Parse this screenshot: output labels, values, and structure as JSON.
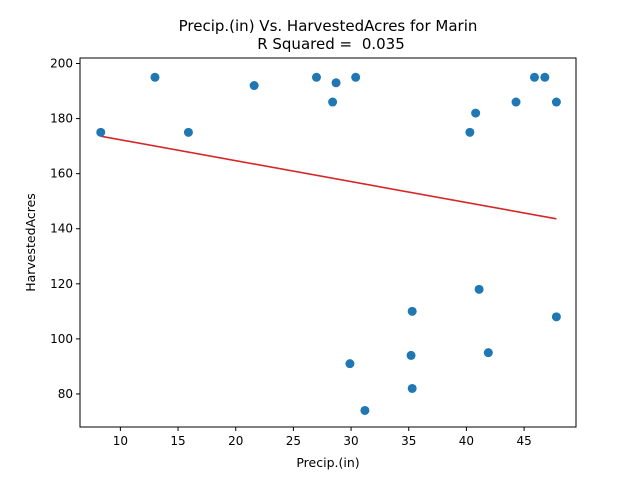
{
  "chart_data": {
    "type": "scatter",
    "title": "Precip.(in) Vs. HarvestedAcres for Marin",
    "subtitle_label": "R Squared = ",
    "r_squared": "0.035",
    "xlabel": "Precip.(in)",
    "ylabel": "HarvestedAcres",
    "xlim": [
      6.5,
      49.5
    ],
    "ylim": [
      68,
      202
    ],
    "xticks": [
      10,
      15,
      20,
      25,
      30,
      35,
      40,
      45
    ],
    "yticks": [
      80,
      100,
      120,
      140,
      160,
      180,
      200
    ],
    "grid": false,
    "point_color": "#1f77b4",
    "line_color": "#d62728",
    "points": [
      {
        "x": 8.3,
        "y": 175
      },
      {
        "x": 13.0,
        "y": 195
      },
      {
        "x": 15.9,
        "y": 175
      },
      {
        "x": 21.6,
        "y": 192
      },
      {
        "x": 27.0,
        "y": 195
      },
      {
        "x": 28.4,
        "y": 186
      },
      {
        "x": 28.7,
        "y": 193
      },
      {
        "x": 30.4,
        "y": 195
      },
      {
        "x": 29.9,
        "y": 91
      },
      {
        "x": 31.2,
        "y": 74
      },
      {
        "x": 35.2,
        "y": 94
      },
      {
        "x": 35.3,
        "y": 110
      },
      {
        "x": 35.3,
        "y": 82
      },
      {
        "x": 40.3,
        "y": 175
      },
      {
        "x": 40.8,
        "y": 182
      },
      {
        "x": 41.1,
        "y": 118
      },
      {
        "x": 41.9,
        "y": 95
      },
      {
        "x": 44.3,
        "y": 186
      },
      {
        "x": 45.9,
        "y": 195
      },
      {
        "x": 46.8,
        "y": 195
      },
      {
        "x": 47.8,
        "y": 186
      },
      {
        "x": 47.8,
        "y": 108
      }
    ],
    "regression": {
      "x1": 8.3,
      "y1": 173.6,
      "x2": 47.8,
      "y2": 143.6
    }
  }
}
